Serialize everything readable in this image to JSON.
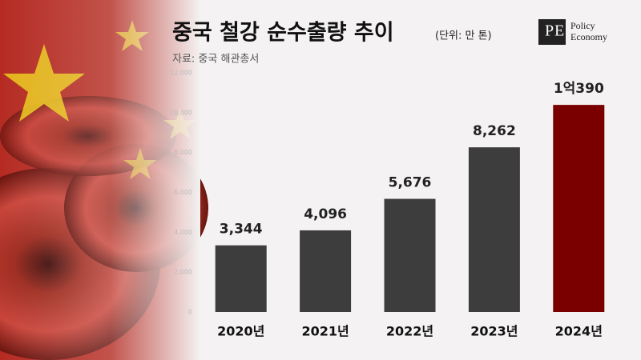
{
  "chart_data": {
    "type": "bar",
    "title": "중국 철강 순수출량 추이",
    "subtitle": "(단위: 만 톤)",
    "source": "자료: 중국 해관총서",
    "logo": {
      "mark": [
        "P",
        "E"
      ],
      "text": [
        "Policy",
        "Economy"
      ]
    },
    "categories": [
      "2020년",
      "2021년",
      "2022년",
      "2023년",
      "2024년"
    ],
    "values": [
      3344,
      4096,
      5676,
      8262,
      10390
    ],
    "value_labels": [
      "3,344",
      "4,096",
      "5,676",
      "8,262",
      "1억390"
    ],
    "colors": [
      "#3d3d3d",
      "#3d3d3d",
      "#3d3d3d",
      "#3d3d3d",
      "#7a0000"
    ],
    "ylim": [
      0,
      12000
    ],
    "yticks": [
      0,
      {
        "value": 2000,
        "label": "2,000"
      },
      {
        "value": 4000,
        "label": "4,000"
      },
      {
        "value": 6000,
        "label": "6,000"
      },
      {
        "value": 8000,
        "label": "8,000"
      },
      {
        "value": 10000,
        "label": "10,000"
      },
      {
        "value": 12000,
        "label": "12,000"
      }
    ],
    "grid": false
  }
}
